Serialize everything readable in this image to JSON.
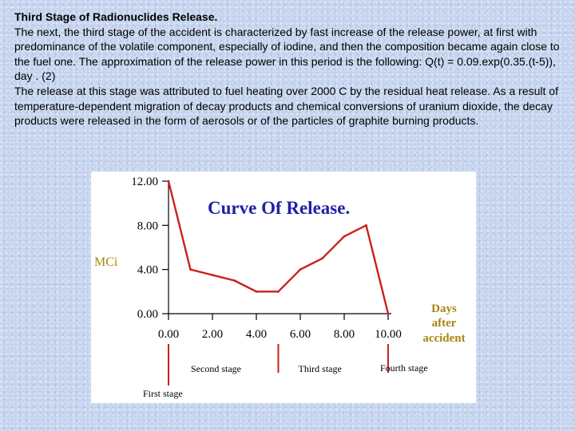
{
  "text": {
    "title": "Third Stage of Radionuclides Release.",
    "paragraph1": "The next, the third stage of the accident is characterized by fast increase of the release power, at first with predominance of the volatile component, especially of iodine, and then the composition became again close to the fuel one. The approximation of the release power in this period is the following: Q(t) = 0.09.exp(0.35.(t-5)), day . (2)",
    "paragraph2": "The release at this stage was attributed to fuel heating over 2000 C by the residual heat release. As a result of temperature-dependent migration of decay products and chemical conversions of uranium dioxide, the decay products were released in the form of aerosols or of the particles of graphite burning products."
  },
  "chart_data": {
    "type": "line",
    "title": "Curve Of Release.",
    "ylabel": "MCi",
    "xlabel_lines": [
      "Days",
      "after",
      "accident"
    ],
    "x": [
      0,
      1,
      2,
      3,
      4,
      5,
      6,
      7,
      8,
      9,
      10
    ],
    "y": [
      12,
      4,
      3.5,
      3,
      2,
      2,
      4,
      5,
      7,
      8,
      0
    ],
    "xlim": [
      0,
      10
    ],
    "ylim": [
      0,
      12
    ],
    "x_ticks": [
      "0.00",
      "2.00",
      "4.00",
      "6.00",
      "8.00",
      "10.00"
    ],
    "x_tick_values": [
      0,
      2,
      4,
      6,
      8,
      10
    ],
    "y_ticks": [
      "0.00",
      "4.00",
      "8.00",
      "12.00"
    ],
    "y_tick_values": [
      0,
      4,
      8,
      12
    ],
    "stages": [
      {
        "label": "First stage",
        "at": 0
      },
      {
        "label": "Second stage",
        "at": 5
      },
      {
        "label": "Third stage",
        "at": 10
      }
    ],
    "stage_label_extra": "Fourth stage",
    "colors": {
      "line": "#cc1f1f",
      "title": "#1f1fa8",
      "axis_labels": "#a8860f",
      "ticks": "#000000",
      "stage_text": "#000000"
    }
  }
}
